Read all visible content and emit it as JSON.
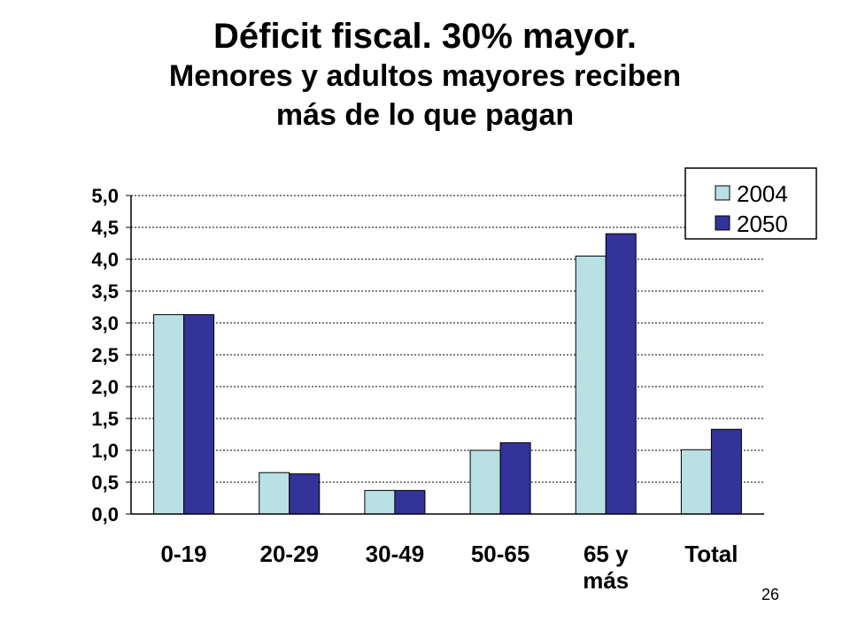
{
  "title": "Déficit fiscal. 30% mayor.",
  "subtitle_line1": "Menores y adultos mayores reciben",
  "subtitle_line2": "más de lo que pagan",
  "page_number": "26",
  "chart_data": {
    "type": "bar",
    "categories": [
      [
        "0-19"
      ],
      [
        "20-29"
      ],
      [
        "30-49"
      ],
      [
        "50-65"
      ],
      [
        "65 y",
        "más"
      ],
      [
        "Total"
      ]
    ],
    "series": [
      {
        "name": "2004",
        "color": "#b9e0e3",
        "values": [
          3.13,
          0.65,
          0.37,
          1.0,
          4.05,
          1.01
        ]
      },
      {
        "name": "2050",
        "color": "#333399",
        "values": [
          3.13,
          0.63,
          0.37,
          1.12,
          4.4,
          1.33
        ]
      }
    ],
    "ylim": [
      0,
      5
    ],
    "yticks": [
      "0,0",
      "0,5",
      "1,0",
      "1,5",
      "2,0",
      "2,5",
      "3,0",
      "3,5",
      "4,0",
      "4,5",
      "5,0"
    ],
    "grid": true,
    "legend": "top-right"
  }
}
